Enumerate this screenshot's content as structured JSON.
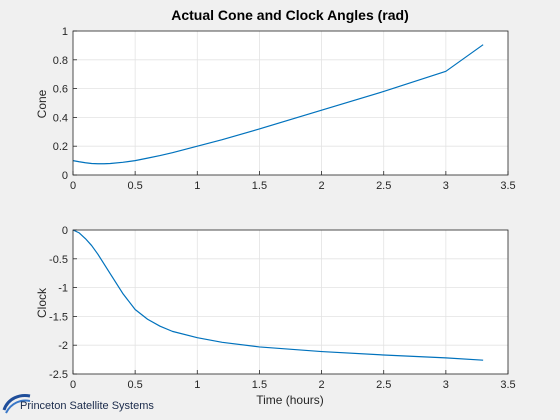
{
  "branding": {
    "company_name": "Princeton Satellite Systems"
  },
  "chart_data": [
    {
      "type": "line",
      "title": "Actual Cone and Clock Angles (rad)",
      "xlabel": "",
      "ylabel": "Cone",
      "xlim": [
        0,
        3.5
      ],
      "ylim": [
        0,
        1
      ],
      "grid": true,
      "xticks": [
        "0",
        "0.5",
        "1",
        "1.5",
        "2",
        "2.5",
        "3",
        "3.5"
      ],
      "yticks": [
        "0",
        "0.2",
        "0.4",
        "0.6",
        "0.8",
        "1"
      ],
      "series": [
        {
          "color": "#0072bd",
          "x": [
            0,
            0.05,
            0.1,
            0.15,
            0.2,
            0.25,
            0.3,
            0.4,
            0.5,
            0.6,
            0.7,
            0.8,
            1.0,
            1.2,
            1.5,
            2.0,
            2.5,
            3.0,
            3.3
          ],
          "y": [
            0.1,
            0.092,
            0.085,
            0.08,
            0.078,
            0.078,
            0.08,
            0.088,
            0.1,
            0.117,
            0.135,
            0.155,
            0.2,
            0.245,
            0.32,
            0.45,
            0.58,
            0.72,
            0.905
          ]
        }
      ]
    },
    {
      "type": "line",
      "title": "",
      "xlabel": "Time (hours)",
      "ylabel": "Clock",
      "xlim": [
        0,
        3.5
      ],
      "ylim": [
        -2.5,
        0
      ],
      "grid": true,
      "xticks": [
        "0",
        "0.5",
        "1",
        "1.5",
        "2",
        "2.5",
        "3",
        "3.5"
      ],
      "yticks": [
        "0",
        "-0.5",
        "-1",
        "-1.5",
        "-2",
        "-2.5"
      ],
      "series": [
        {
          "color": "#0072bd",
          "x": [
            0,
            0.05,
            0.1,
            0.15,
            0.2,
            0.3,
            0.4,
            0.5,
            0.6,
            0.7,
            0.8,
            1.0,
            1.2,
            1.5,
            2.0,
            2.5,
            3.0,
            3.3
          ],
          "y": [
            0,
            -0.05,
            -0.15,
            -0.27,
            -0.42,
            -0.76,
            -1.1,
            -1.38,
            -1.55,
            -1.67,
            -1.76,
            -1.87,
            -1.95,
            -2.03,
            -2.11,
            -2.17,
            -2.22,
            -2.26
          ]
        }
      ]
    }
  ]
}
